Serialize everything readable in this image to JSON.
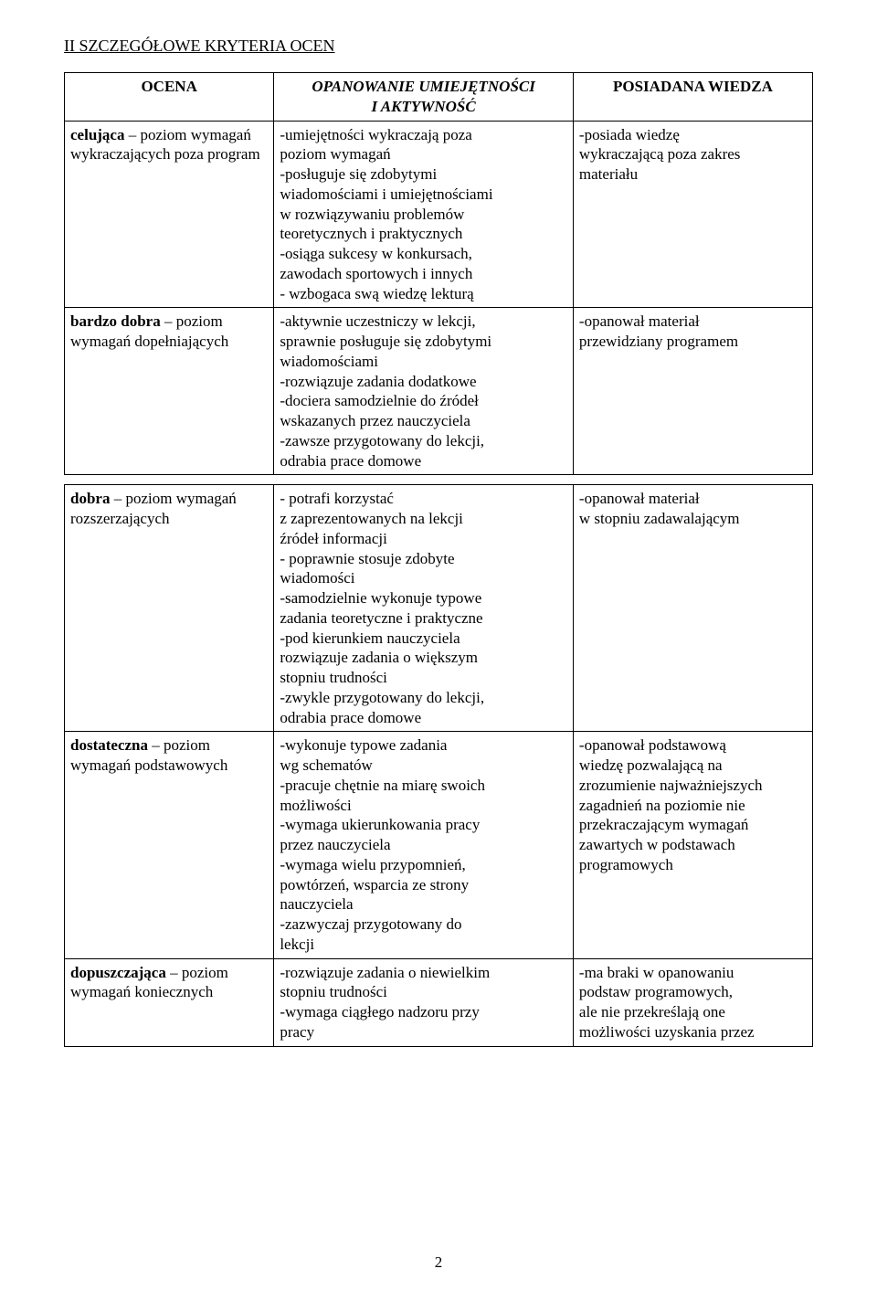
{
  "section_title": "II  SZCZEGÓŁOWE KRYTERIA OCEN",
  "headers": {
    "col1": "OCENA",
    "col2_line1": "OPANOWANIE UMIEJĘTNOŚCI",
    "col2_line2": "I AKTYWNOŚĆ",
    "col3": "POSIADANA WIEDZA"
  },
  "rows": [
    {
      "grade_bold": "celująca",
      "grade_rest": " – poziom wymagań wykraczających poza program",
      "skills": "-umiejętności wykraczają poza\n poziom wymagań\n-posługuje się zdobytymi\n wiadomościami i umiejętnościami\n w rozwiązywaniu problemów\n teoretycznych i praktycznych\n-osiąga sukcesy w konkursach,\n zawodach sportowych i innych\n- wzbogaca swą wiedzę lekturą",
      "knowledge": "-posiada wiedzę\n wykraczającą poza zakres\n materiału"
    },
    {
      "grade_bold": "bardzo dobra",
      "grade_rest": " – poziom wymagań dopełniających",
      "skills": "-aktywnie uczestniczy w lekcji,\n sprawnie posługuje się zdobytymi\n wiadomościami\n-rozwiązuje zadania dodatkowe\n-dociera samodzielnie do źródeł\n wskazanych przez nauczyciela\n-zawsze przygotowany do lekcji,\n odrabia prace domowe",
      "knowledge": "-opanował materiał\n przewidziany programem"
    },
    {
      "grade_bold": "dobra",
      "grade_rest": " – poziom wymagań rozszerzających",
      "skills": "- potrafi korzystać\n  z zaprezentowanych na lekcji\n  źródeł informacji\n- poprawnie stosuje zdobyte\nwiadomości\n-samodzielnie wykonuje typowe\n zadania teoretyczne i praktyczne\n-pod kierunkiem nauczyciela\n rozwiązuje zadania o większym\n stopniu trudności\n-zwykle przygotowany do lekcji,\n odrabia prace domowe",
      "knowledge": "-opanował materiał\n w stopniu zadawalającym"
    },
    {
      "grade_bold": "dostateczna",
      "grade_rest": " – poziom wymagań podstawowych",
      "skills": "-wykonuje typowe zadania\n wg schematów\n-pracuje chętnie na miarę swoich\n możliwości\n-wymaga ukierunkowania pracy\n przez nauczyciela\n-wymaga wielu przypomnień,\n powtórzeń, wsparcia ze strony\n nauczyciela\n-zazwyczaj przygotowany do\n lekcji",
      "knowledge": "-opanował podstawową\n wiedzę pozwalającą na\nzrozumienie najważniejszych\n zagadnień na poziomie nie\n przekraczającym wymagań\n zawartych w podstawach\n programowych"
    },
    {
      "grade_bold": "dopuszczająca",
      "grade_rest": " – poziom wymagań koniecznych",
      "skills": "-rozwiązuje zadania o niewielkim\n stopniu trudności\n-wymaga ciągłego nadzoru przy\n pracy",
      "knowledge": "-ma braki w opanowaniu\n podstaw programowych,\n ale nie przekreślają one\n możliwości uzyskania przez"
    }
  ],
  "page_number": "2"
}
